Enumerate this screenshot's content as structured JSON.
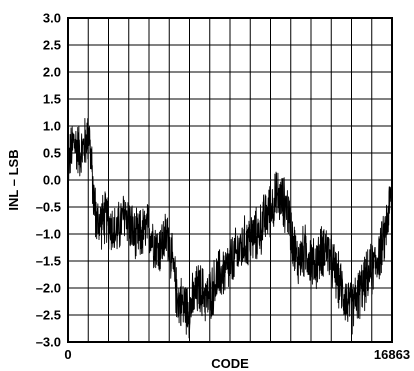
{
  "chart_data": {
    "type": "line",
    "xlabel": "CODE",
    "ylabel": "INL – LSB",
    "xlim": [
      0,
      16863
    ],
    "ylim": [
      -3.0,
      3.0
    ],
    "x_tick_labels": [
      "0",
      "16863"
    ],
    "y_ticks": [
      3.0,
      2.5,
      2.0,
      1.5,
      1.0,
      0.5,
      0.0,
      -0.5,
      -1.0,
      -1.5,
      -2.0,
      -2.5,
      -3.0
    ],
    "y_tick_labels": [
      "3.0",
      "2.5",
      "2.0",
      "1.5",
      "1.0",
      "0.5",
      "0.0",
      "–0.5",
      "–1.0",
      "–1.5",
      "–2.0",
      "–2.5",
      "–3.0"
    ],
    "grid": true,
    "grid_divisions": {
      "x": 16,
      "y": 12
    },
    "series": [
      {
        "color": "#000000",
        "trend": {
          "x": [
            0,
            300,
            700,
            1100,
            1300,
            1500,
            2000,
            2500,
            3000,
            3500,
            4200,
            4700,
            5200,
            5700,
            6300,
            6800,
            7300,
            7800,
            8400,
            8900,
            9400,
            9900,
            10400,
            10900,
            11400,
            11900,
            12400,
            12800,
            13400,
            14000,
            14700,
            15300,
            15900,
            16400,
            16863
          ],
          "y": [
            0.3,
            0.7,
            0.5,
            0.9,
            -0.2,
            -0.8,
            -0.7,
            -1.0,
            -0.6,
            -1.1,
            -0.9,
            -1.3,
            -1.0,
            -2.2,
            -2.4,
            -2.0,
            -2.2,
            -1.8,
            -1.6,
            -1.3,
            -1.1,
            -1.0,
            -0.6,
            -0.3,
            -0.5,
            -1.5,
            -1.3,
            -1.6,
            -1.2,
            -1.8,
            -2.4,
            -2.0,
            -1.6,
            -1.2,
            -0.2
          ]
        },
        "noise_amplitude": 0.45
      }
    ]
  }
}
